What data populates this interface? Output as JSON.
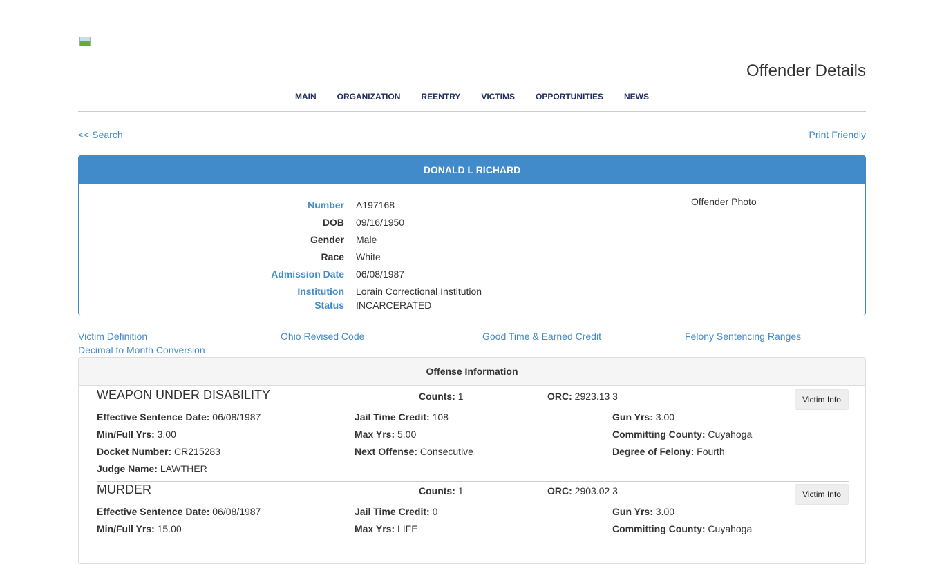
{
  "header": {
    "title": "Offender Details"
  },
  "nav": [
    "MAIN",
    "ORGANIZATION",
    "REENTRY",
    "VICTIMS",
    "OPPORTUNITIES",
    "NEWS"
  ],
  "links": {
    "back": "<< Search",
    "print": "Print Friendly"
  },
  "offender": {
    "name": "DONALD L RICHARD",
    "photo_alt": "Offender Photo",
    "fields": [
      {
        "label": "Number",
        "value": "A197168",
        "link": true
      },
      {
        "label": "DOB",
        "value": "09/16/1950",
        "link": false
      },
      {
        "label": "Gender",
        "value": "Male",
        "link": false
      },
      {
        "label": "Race",
        "value": "White",
        "link": false
      },
      {
        "label": "Admission Date",
        "value": "06/08/1987",
        "link": true
      },
      {
        "label": "Institution",
        "value": "Lorain Correctional Institution",
        "link": true
      },
      {
        "label": "Status",
        "value": "INCARCERATED",
        "link": true
      }
    ]
  },
  "resources": [
    "Victim Definition",
    "Ohio Revised Code",
    "Good Time & Earned Credit",
    "Felony Sentencing Ranges",
    "Decimal to Month Conversion"
  ],
  "offense_section": {
    "title": "Offense Information",
    "button": "Victim Info",
    "offenses": [
      {
        "title": "WEAPON UNDER DISABILITY",
        "counts": "1",
        "orc": "2923.13 3",
        "eff_date": "06/08/1987",
        "jail_credit": "108",
        "gun_yrs": "3.00",
        "min_full": "3.00",
        "max_yrs": "5.00",
        "county": "Cuyahoga",
        "docket": "CR215283",
        "next_offense": "Consecutive",
        "degree": "Fourth",
        "judge": "LAWTHER"
      },
      {
        "title": "MURDER",
        "counts": "1",
        "orc": "2903.02 3",
        "eff_date": "06/08/1987",
        "jail_credit": "0",
        "gun_yrs": "3.00",
        "min_full": "15.00",
        "max_yrs": "LIFE",
        "county": "Cuyahoga"
      }
    ]
  },
  "labels": {
    "counts": "Counts:",
    "orc": "ORC:",
    "eff_date": "Effective Sentence Date:",
    "jail_credit": "Jail Time Credit:",
    "gun_yrs": "Gun Yrs:",
    "min_full": "Min/Full Yrs:",
    "max_yrs": "Max Yrs:",
    "county": "Committing County:",
    "docket": "Docket Number:",
    "next_offense": "Next Offense:",
    "degree": "Degree of Felony:",
    "judge": "Judge Name:"
  }
}
